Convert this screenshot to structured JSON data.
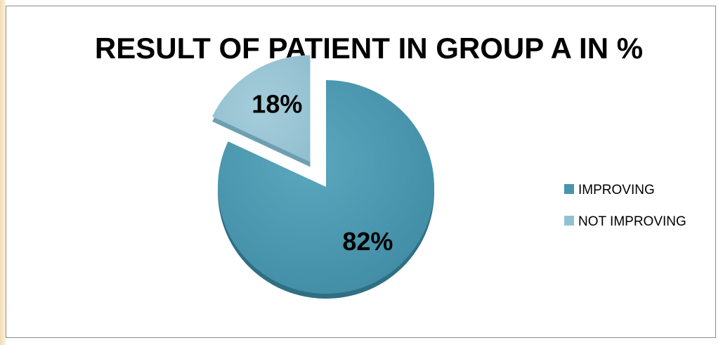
{
  "chart_data": {
    "type": "pie",
    "title": "RESULT  OF PATIENT IN GROUP A  IN %",
    "categories": [
      "IMPROVING",
      "NOT IMPROVING"
    ],
    "values": [
      82,
      18
    ],
    "labels": [
      "82%",
      "18%"
    ],
    "exploded": [
      "NOT IMPROVING"
    ],
    "colors": [
      "#4894ab",
      "#93c1d3"
    ],
    "legend": {
      "position": "right",
      "entries": [
        "IMPROVING",
        "NOT IMPROVING"
      ]
    }
  }
}
